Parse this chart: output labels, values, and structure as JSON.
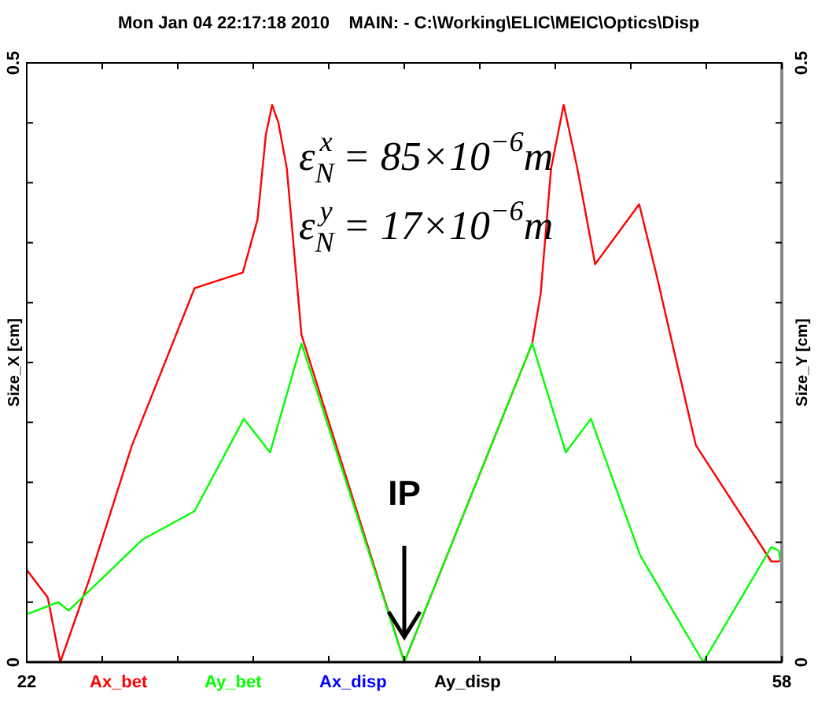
{
  "chart_data": {
    "type": "line",
    "title": "Mon Jan 04 22:17:18 2010    MAIN: - C:\\Working\\ELIC\\MEIC\\Optics\\Disp",
    "ylabel": "Size_X [cm]",
    "y2label": "Size_Y [cm]",
    "xlim": [
      22,
      58
    ],
    "xticks": [
      22,
      {
        "value": 25.6,
        "label": null
      },
      {
        "value": 29.2,
        "label": null
      },
      {
        "value": 32.8,
        "label": null
      },
      {
        "value": 36.4,
        "label": null
      },
      {
        "value": 40,
        "label": null
      },
      {
        "value": 43.6,
        "label": null
      },
      {
        "value": 47.2,
        "label": null
      },
      {
        "value": 50.8,
        "label": null
      },
      {
        "value": 54.4,
        "label": null
      },
      58
    ],
    "ylim": [
      0,
      0.5
    ],
    "yticks": [
      0,
      {
        "value": 0.05,
        "label": null
      },
      {
        "value": 0.1,
        "label": null
      },
      {
        "value": 0.15,
        "label": null
      },
      {
        "value": 0.2,
        "label": null
      },
      {
        "value": 0.25,
        "label": null
      },
      {
        "value": 0.3,
        "label": null
      },
      {
        "value": 0.35,
        "label": null
      },
      {
        "value": 0.4,
        "label": null
      },
      {
        "value": 0.45,
        "label": null
      },
      0.5
    ],
    "y2lim": [
      0,
      0.5
    ],
    "y2ticks": [
      0,
      {
        "value": 0.05,
        "label": null
      },
      {
        "value": 0.1,
        "label": null
      },
      {
        "value": 0.15,
        "label": null
      },
      {
        "value": 0.2,
        "label": null
      },
      {
        "value": 0.25,
        "label": null
      },
      {
        "value": 0.3,
        "label": null
      },
      {
        "value": 0.35,
        "label": null
      },
      {
        "value": 0.4,
        "label": null
      },
      {
        "value": 0.45,
        "label": null
      },
      0.5
    ],
    "grid": false,
    "legend": "bottom",
    "line_style": "solid",
    "series": [
      {
        "name": "Ax_bet",
        "color": "#ff0000",
        "x": [
          22,
          23,
          23.6,
          25,
          27,
          30,
          32.3,
          33,
          33.4,
          33.7,
          34,
          34.4,
          35.1,
          40,
          46.1,
          46.5,
          47,
          47.6,
          48.25,
          49.1,
          51.2,
          52,
          53.9,
          57.5,
          57.85,
          58
        ],
        "values": [
          0.077,
          0.054,
          0,
          0.07,
          0.18,
          0.312,
          0.325,
          0.369,
          0.44,
          0.465,
          0.45,
          0.412,
          0.273,
          0,
          0.266,
          0.307,
          0.412,
          0.465,
          0.412,
          0.332,
          0.382,
          0.325,
          0.181,
          0.084,
          0.084,
          0.085
        ]
      },
      {
        "name": "Ay_bet",
        "color": "#00ff00",
        "x": [
          22,
          23.5,
          24,
          27.5,
          30,
          32.35,
          33.6,
          35.1,
          40,
          46.1,
          47.7,
          48.9,
          51.25,
          54.25,
          57.5,
          57.85,
          58
        ],
        "values": [
          0.04,
          0.05,
          0.043,
          0.102,
          0.126,
          0.203,
          0.175,
          0.266,
          0,
          0.266,
          0.175,
          0.203,
          0.089,
          0,
          0.096,
          0.093,
          0.08
        ]
      },
      {
        "name": "Ax_disp",
        "color": "#0000ff"
      },
      {
        "name": "Ay_disp",
        "color": "#000000"
      }
    ],
    "annotations": [
      "ε$_{N}$$^{x}$ = 85×10$^{−6}$m",
      "ε$_{N}$$^{y}$ = 17×10$^{−6}$m",
      "IP"
    ]
  }
}
